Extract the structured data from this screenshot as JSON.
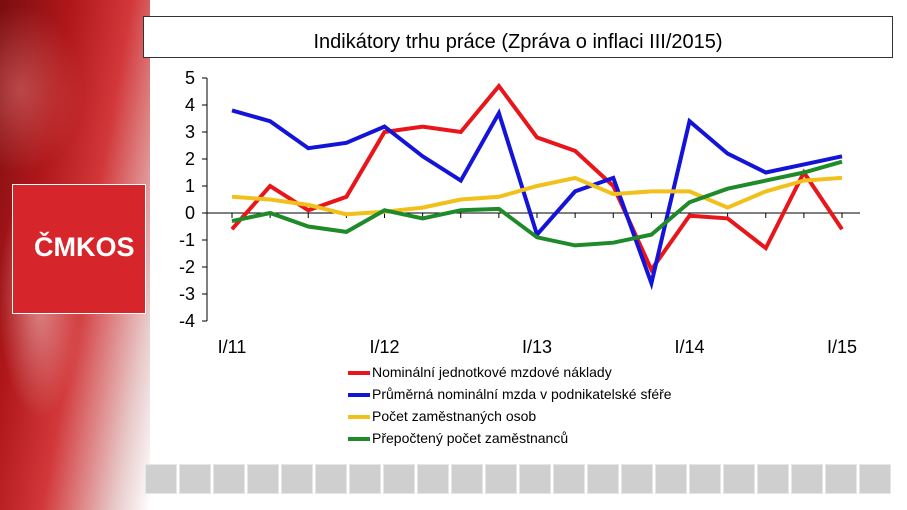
{
  "branding": {
    "logo_text": "ČMKOS"
  },
  "chart_data": {
    "type": "line",
    "title": "Indikátory trhu práce (Zpráva o inflaci III/2015)",
    "xlabel": "",
    "ylabel": "",
    "ylim": [
      -4,
      5
    ],
    "yticks": [
      5,
      4,
      3,
      2,
      1,
      0,
      -1,
      -2,
      -3,
      -4
    ],
    "x_tick_labels": [
      "I/11",
      "I/12",
      "I/13",
      "I/14",
      "I/15"
    ],
    "x": [
      "I/11",
      "II/11",
      "III/11",
      "IV/11",
      "I/12",
      "II/12",
      "III/12",
      "IV/12",
      "I/13",
      "II/13",
      "III/13",
      "IV/13",
      "I/14",
      "II/14",
      "III/14",
      "IV/14",
      "I/15"
    ],
    "grid": false,
    "legend_position": "bottom",
    "series": [
      {
        "name": "Nominální jednotkové mzdové náklady",
        "color": "#e8161b",
        "values": [
          -0.6,
          1.0,
          0.1,
          0.6,
          3.0,
          3.2,
          3.0,
          4.7,
          2.8,
          2.3,
          1.0,
          -2.1,
          -0.1,
          -0.2,
          -1.3,
          1.5,
          -0.6
        ]
      },
      {
        "name": "Průměrná nominální mzda v podnikatelské sféře",
        "color": "#1414d8",
        "values": [
          3.8,
          3.4,
          2.4,
          2.6,
          3.2,
          2.1,
          1.2,
          3.7,
          -0.8,
          0.8,
          1.3,
          -2.6,
          3.4,
          2.2,
          1.5,
          1.8,
          2.1
        ]
      },
      {
        "name": "Počet zaměstnaných osob",
        "color": "#f2c01b",
        "values": [
          0.6,
          0.5,
          0.3,
          -0.05,
          0.05,
          0.2,
          0.5,
          0.6,
          1.0,
          1.3,
          0.7,
          0.8,
          0.8,
          0.2,
          0.8,
          1.2,
          1.3
        ]
      },
      {
        "name": "Přepočtený počet zaměstnanců",
        "color": "#1f8a2a",
        "values": [
          -0.3,
          0.0,
          -0.5,
          -0.7,
          0.1,
          -0.2,
          0.1,
          0.15,
          -0.9,
          -1.2,
          -1.1,
          -0.8,
          0.4,
          0.9,
          1.2,
          1.5,
          1.9
        ]
      }
    ]
  }
}
